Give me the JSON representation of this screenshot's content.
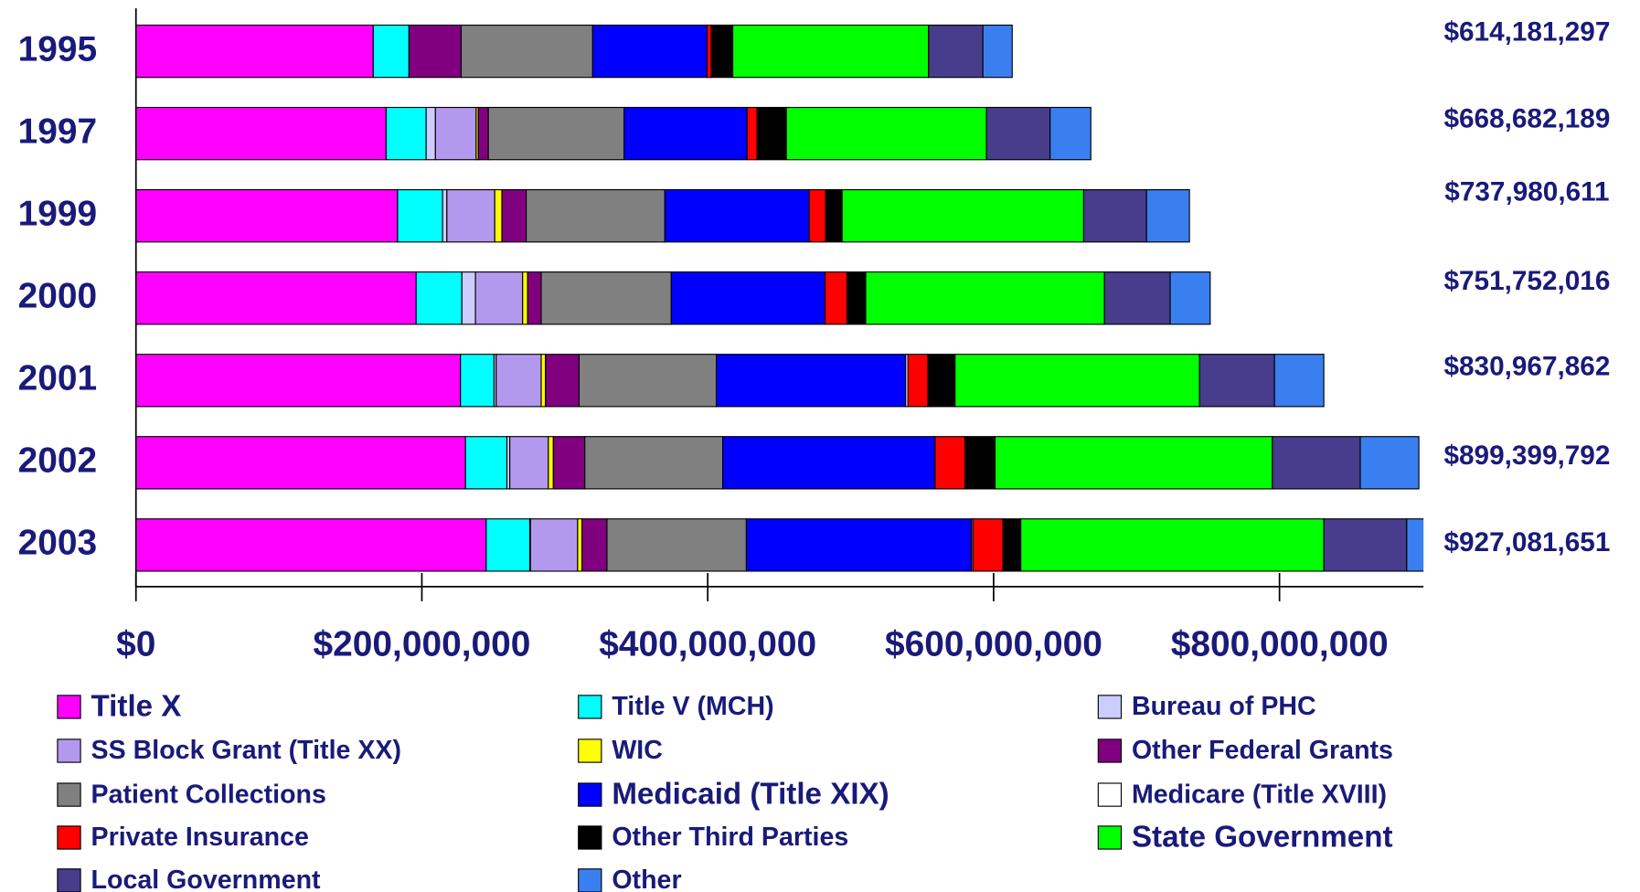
{
  "chart_data": {
    "type": "stacked-bar-horizontal",
    "categories": [
      "1995",
      "1997",
      "1999",
      "2000",
      "2001",
      "2002",
      "2003"
    ],
    "totals": [
      614181297,
      668682189,
      737980611,
      751752016,
      830967862,
      899399792,
      927081651
    ],
    "total_labels": [
      "$614,181,297",
      "$668,682,189",
      "$737,980,611",
      "$751,752,016",
      "$830,967,862",
      "$899,399,792",
      "$927,081,651"
    ],
    "xlim": [
      0,
      900000000
    ],
    "xticks": [
      {
        "value": 0,
        "label": "$0"
      },
      {
        "value": 200000000,
        "label": "$200,000,000"
      },
      {
        "value": 400000000,
        "label": "$400,000,000"
      },
      {
        "value": 600000000,
        "label": "$600,000,000"
      },
      {
        "value": 800000000,
        "label": "$800,000,000"
      }
    ],
    "series": [
      {
        "name": "Title X",
        "color": "#ff00ff",
        "values": [
          166000000,
          175000000,
          183000000,
          196000000,
          227000000,
          230500000,
          245000000
        ]
      },
      {
        "name": "Title V (MCH)",
        "color": "#00ffff",
        "values": [
          25000000,
          28000000,
          31500000,
          32000000,
          23500000,
          29000000,
          30500000
        ]
      },
      {
        "name": "Bureau of PHC",
        "color": "#ccccff",
        "values": [
          0,
          6500000,
          3000000,
          9500000,
          1500000,
          2000000,
          500000
        ]
      },
      {
        "name": "SS Block Grant (Title XX)",
        "color": "#b399ee",
        "values": [
          0,
          28500000,
          33500000,
          33000000,
          31500000,
          27000000,
          33000000
        ]
      },
      {
        "name": "WIC",
        "color": "#ffff00",
        "values": [
          0,
          1500000,
          5000000,
          3500000,
          3000000,
          3500000,
          3000000
        ]
      },
      {
        "name": "Other Federal Grants",
        "color": "#800080",
        "values": [
          36500000,
          7000000,
          17000000,
          9500000,
          23500000,
          22000000,
          17500000
        ]
      },
      {
        "name": "Patient Collections",
        "color": "#808080",
        "values": [
          92000000,
          95000000,
          97000000,
          91000000,
          96000000,
          96500000,
          97500000
        ]
      },
      {
        "name": "Medicaid (Title XIX)",
        "color": "#0000ff",
        "values": [
          80000000,
          86000000,
          101000000,
          107500000,
          132500000,
          148500000,
          157500000
        ]
      },
      {
        "name": "Medicare (Title XVIII)",
        "color": "#ffffff",
        "values": [
          0,
          0,
          0,
          0,
          1500000,
          0,
          1000000
        ]
      },
      {
        "name": "Private Insurance",
        "color": "#ff0000",
        "values": [
          3000000,
          7000000,
          11500000,
          15500000,
          14000000,
          21000000,
          21000000
        ]
      },
      {
        "name": "Other Third Parties",
        "color": "#000000",
        "values": [
          15000000,
          20500000,
          11500000,
          13000000,
          19000000,
          21000000,
          12500000
        ]
      },
      {
        "name": "State Government",
        "color": "#00ff00",
        "values": [
          137000000,
          140000000,
          169000000,
          167000000,
          171000000,
          194000000,
          212000000
        ]
      },
      {
        "name": "Local Government",
        "color": "#483c8c",
        "values": [
          38000000,
          44500000,
          44000000,
          46000000,
          52500000,
          61500000,
          58000000
        ]
      },
      {
        "name": "Other",
        "color": "#3a7ff0",
        "values": [
          20500000,
          28500000,
          30000000,
          28000000,
          34500000,
          41000000,
          38000000
        ]
      }
    ]
  }
}
